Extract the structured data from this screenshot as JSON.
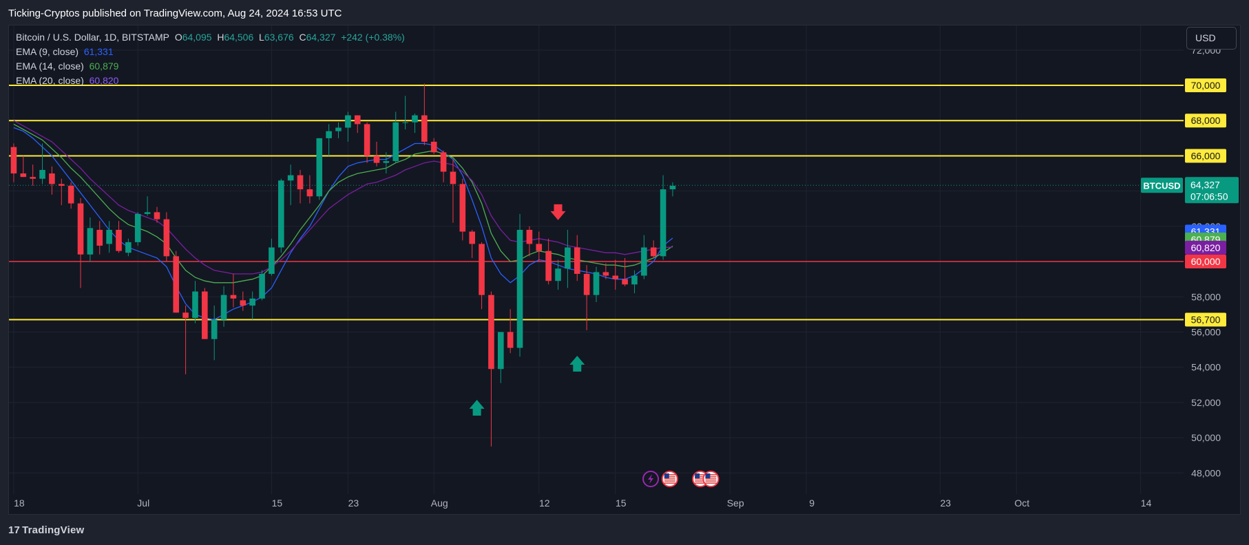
{
  "header": {
    "publisher": "Ticking-Cryptos published on TradingView.com, Aug 24, 2024 16:53 UTC"
  },
  "legend": {
    "symbol": "Bitcoin / U.S. Dollar, 1D, BITSTAMP",
    "o_label": "O",
    "o_value": "64,095",
    "h_label": "H",
    "h_value": "64,506",
    "l_label": "L",
    "l_value": "63,676",
    "c_label": "C",
    "c_value": "64,327",
    "change": "+242 (+0.38%)",
    "ema": [
      {
        "label": "EMA (9, close)",
        "value": "61,331",
        "color": "#2962ff"
      },
      {
        "label": "EMA (14, close)",
        "value": "60,879",
        "color": "#4caf50"
      },
      {
        "label": "EMA (20, close)",
        "value": "60,820",
        "color": "#7b1fa2"
      }
    ]
  },
  "currency_button": "USD",
  "branding": {
    "logo_mark": "17",
    "name": "TradingView"
  },
  "colors": {
    "up": "#089981",
    "down": "#f23645",
    "level": "#ffeb3b",
    "support": "#f23645",
    "bg": "#131722",
    "grid": "#1f2430"
  },
  "chart_data": {
    "type": "candlestick",
    "symbol": "BTCUSD",
    "timeframe": "1D",
    "ylim": [
      46800,
      73400
    ],
    "y_ticks": [
      48000,
      50000,
      52000,
      54000,
      56000,
      58000,
      62000,
      72000
    ],
    "y_tick_labels": [
      "48,000",
      "50,000",
      "52,000",
      "54,000",
      "56,000",
      "58,000",
      "62,000",
      "72,000"
    ],
    "x_ticks": [
      {
        "label": "18",
        "idx": 0
      },
      {
        "label": "Jul",
        "idx": 13
      },
      {
        "label": "15",
        "idx": 27
      },
      {
        "label": "23",
        "idx": 35
      },
      {
        "label": "Aug",
        "idx": 44
      },
      {
        "label": "12",
        "idx": 55
      },
      {
        "label": "15",
        "idx": 63
      },
      {
        "label": "Sep",
        "idx": 75
      },
      {
        "label": "9",
        "idx": 83
      },
      {
        "label": "23",
        "idx": 97
      },
      {
        "label": "Oct",
        "idx": 105
      },
      {
        "label": "14",
        "idx": 118
      }
    ],
    "x_range": [
      -0.5,
      122.5
    ],
    "candles": [
      [
        66500,
        66700,
        64500,
        65000
      ],
      [
        65000,
        66000,
        64800,
        64800
      ],
      [
        64800,
        65500,
        64300,
        64700
      ],
      [
        64700,
        66700,
        64400,
        65200
      ],
      [
        65000,
        65400,
        63800,
        64400
      ],
      [
        64400,
        64700,
        63200,
        64300
      ],
      [
        64300,
        64500,
        63000,
        63300
      ],
      [
        63300,
        63600,
        58500,
        60400
      ],
      [
        60400,
        62500,
        60000,
        61900
      ],
      [
        61800,
        62300,
        60400,
        60900
      ],
      [
        61000,
        62300,
        60500,
        61800
      ],
      [
        61800,
        62300,
        60500,
        60600
      ],
      [
        60500,
        61300,
        60300,
        61100
      ],
      [
        61100,
        62800,
        60900,
        62700
      ],
      [
        62700,
        63700,
        62600,
        62800
      ],
      [
        62800,
        63100,
        62200,
        62400
      ],
      [
        62400,
        62800,
        60000,
        60300
      ],
      [
        60300,
        60600,
        57100,
        57100
      ],
      [
        57100,
        57500,
        53600,
        56800
      ],
      [
        56800,
        58900,
        56500,
        58300
      ],
      [
        58300,
        58500,
        55600,
        55600
      ],
      [
        55600,
        57500,
        54400,
        56700
      ],
      [
        56700,
        58600,
        56300,
        58100
      ],
      [
        58100,
        59300,
        57400,
        57900
      ],
      [
        57800,
        58300,
        57200,
        57500
      ],
      [
        57500,
        58300,
        56700,
        57900
      ],
      [
        57900,
        59500,
        57800,
        59300
      ],
      [
        59300,
        61300,
        59200,
        60800
      ],
      [
        60800,
        64700,
        60500,
        64600
      ],
      [
        64600,
        65500,
        63200,
        64900
      ],
      [
        64900,
        65200,
        63300,
        64100
      ],
      [
        64100,
        64900,
        63300,
        63700
      ],
      [
        63700,
        67000,
        63500,
        67000
      ],
      [
        67000,
        67800,
        66000,
        67400
      ],
      [
        67400,
        67900,
        67000,
        67600
      ],
      [
        67600,
        68500,
        66800,
        68300
      ],
      [
        68300,
        68200,
        67300,
        67800
      ],
      [
        67800,
        67900,
        65600,
        66000
      ],
      [
        66000,
        66800,
        65400,
        65600
      ],
      [
        65600,
        66200,
        65000,
        65700
      ],
      [
        65700,
        68500,
        65600,
        67900
      ],
      [
        67900,
        69400,
        67500,
        67900
      ],
      [
        67900,
        68400,
        67300,
        68300
      ],
      [
        68300,
        70100,
        66600,
        66800
      ],
      [
        66800,
        67000,
        66100,
        66200
      ],
      [
        66200,
        66300,
        64500,
        65100
      ],
      [
        65100,
        65800,
        62200,
        64400
      ],
      [
        64400,
        64700,
        61200,
        61700
      ],
      [
        61700,
        61800,
        60200,
        61000
      ],
      [
        61000,
        61100,
        57300,
        58100
      ],
      [
        58100,
        58300,
        49500,
        53900
      ],
      [
        53900,
        56000,
        53100,
        56000
      ],
      [
        56000,
        57300,
        54800,
        55100
      ],
      [
        55100,
        62700,
        54600,
        61800
      ],
      [
        61800,
        62000,
        60300,
        61000
      ],
      [
        61000,
        61700,
        60000,
        60600
      ],
      [
        60600,
        61300,
        58700,
        58900
      ],
      [
        58900,
        60100,
        58400,
        59600
      ],
      [
        59600,
        61800,
        58500,
        60800
      ],
      [
        60800,
        61500,
        58900,
        59300
      ],
      [
        59300,
        59800,
        56100,
        58100
      ],
      [
        58100,
        59700,
        57700,
        59400
      ],
      [
        59400,
        59900,
        59000,
        59200
      ],
      [
        59200,
        60100,
        58400,
        59000
      ],
      [
        59000,
        60200,
        58600,
        58700
      ],
      [
        58700,
        59500,
        58200,
        59200
      ],
      [
        59200,
        61500,
        59000,
        60800
      ],
      [
        60800,
        61200,
        60200,
        60300
      ],
      [
        60300,
        64900,
        60100,
        64100
      ],
      [
        64100,
        64500,
        63700,
        64300
      ]
    ],
    "ema": [
      {
        "name": "EMA (9, close)",
        "color": "#2962ff",
        "values": [
          67600,
          67400,
          67000,
          66500,
          66000,
          65300,
          64600,
          63900,
          63200,
          62500,
          61800,
          61200,
          60800,
          60600,
          60400,
          60200,
          59700,
          58600,
          57600,
          57000,
          56800,
          56700,
          57000,
          57300,
          57500,
          57700,
          58000,
          58500,
          59500,
          60500,
          61300,
          62000,
          63000,
          64000,
          64800,
          65400,
          65600,
          65700,
          65800,
          65800,
          66100,
          66400,
          66700,
          66700,
          66600,
          66200,
          65800,
          64900,
          63500,
          62000,
          60200,
          59300,
          58800,
          59200,
          59800,
          60100,
          60000,
          59800,
          59600,
          59500,
          59400,
          59300,
          59100,
          59000,
          59000,
          59200,
          59600,
          60000,
          60900,
          61331
        ]
      },
      {
        "name": "EMA (14, close)",
        "color": "#4caf50",
        "values": [
          67800,
          67500,
          67200,
          66900,
          66400,
          65900,
          65300,
          64800,
          64200,
          63600,
          63000,
          62500,
          62100,
          61900,
          61700,
          61400,
          61000,
          60200,
          59500,
          59100,
          58900,
          58800,
          58800,
          58800,
          58900,
          59000,
          59200,
          59700,
          60300,
          61000,
          61800,
          62500,
          63200,
          64000,
          64500,
          64800,
          65000,
          65100,
          65200,
          65300,
          65600,
          65800,
          66100,
          66200,
          66300,
          66100,
          65900,
          65300,
          64500,
          63300,
          61600,
          60600,
          60000,
          60100,
          60400,
          60600,
          60500,
          60400,
          60200,
          60100,
          60000,
          59900,
          59800,
          59800,
          59700,
          59800,
          60000,
          60200,
          60500,
          60879
        ]
      },
      {
        "name": "EMA (20, close)",
        "color": "#7b1fa2",
        "values": [
          68000,
          67700,
          67400,
          67100,
          66800,
          66300,
          65800,
          65300,
          64700,
          64200,
          63700,
          63200,
          62900,
          62700,
          62500,
          62300,
          61900,
          61300,
          60700,
          60200,
          59800,
          59500,
          59400,
          59300,
          59300,
          59300,
          59400,
          59700,
          60100,
          60600,
          61200,
          61800,
          62400,
          63000,
          63400,
          63800,
          64100,
          64400,
          64500,
          64700,
          64900,
          65200,
          65400,
          65600,
          65700,
          65600,
          65500,
          65100,
          64600,
          63800,
          62600,
          61800,
          61200,
          61100,
          61200,
          61300,
          61200,
          61100,
          60900,
          60800,
          60700,
          60600,
          60500,
          60500,
          60400,
          60500,
          60600,
          60700,
          60800,
          60820
        ]
      }
    ],
    "levels": [
      {
        "price": 70000,
        "label": "70,000",
        "color": "#ffeb3b",
        "text_color": "#131722"
      },
      {
        "price": 68000,
        "label": "68,000",
        "color": "#ffeb3b",
        "text_color": "#131722"
      },
      {
        "price": 66000,
        "label": "66,000",
        "color": "#ffeb3b",
        "text_color": "#131722"
      },
      {
        "price": 56700,
        "label": "56,700",
        "color": "#ffeb3b",
        "text_color": "#131722"
      },
      {
        "price": 60000,
        "label": "60,000",
        "color": "#f23645",
        "text_color": "#ffffff"
      }
    ],
    "last_price": {
      "symbol": "BTCUSD",
      "price": 64327,
      "label": "64,327",
      "countdown": "07:06:50",
      "color": "#089981"
    },
    "ema_badges": [
      {
        "label": "61,331",
        "color": "#2962ff"
      },
      {
        "label": "60,879",
        "color": "#4caf50"
      },
      {
        "label": "60,820",
        "color": "#7b1fa2"
      }
    ],
    "markers": [
      {
        "type": "arrow-down",
        "idx": 57,
        "price": 62700,
        "color": "#f23645"
      },
      {
        "type": "arrow-up",
        "idx": 48.5,
        "price": 51800,
        "color": "#089981"
      },
      {
        "type": "arrow-up",
        "idx": 59,
        "price": 54300,
        "color": "#089981"
      }
    ],
    "events": [
      {
        "kind": "flash",
        "idx": 66.7
      },
      {
        "kind": "us-flag",
        "idx": 68.7
      },
      {
        "kind": "us-flag",
        "idx": 71.9
      },
      {
        "kind": "us-flag",
        "idx": 73.0
      }
    ]
  }
}
